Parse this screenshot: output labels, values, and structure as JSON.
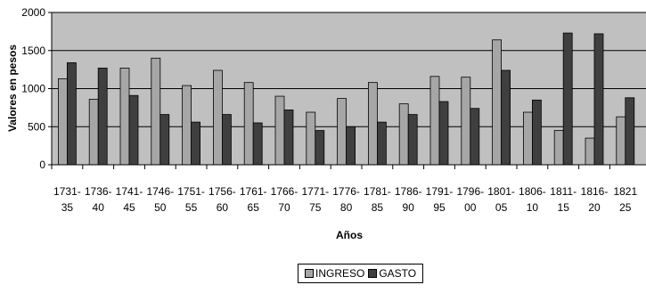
{
  "chart_data": {
    "type": "bar",
    "xlabel": "Años",
    "ylabel": "Valores en pesos",
    "ylim": [
      0,
      2000
    ],
    "yticks": [
      0,
      500,
      1000,
      1500,
      2000
    ],
    "grid": true,
    "legend_position": "bottom",
    "categories": [
      [
        "1731-",
        "35"
      ],
      [
        "1736-",
        "40"
      ],
      [
        "1741-",
        "45"
      ],
      [
        "1746-",
        "50"
      ],
      [
        "1751-",
        "55"
      ],
      [
        "1756-",
        "60"
      ],
      [
        "1761-",
        "65"
      ],
      [
        "1766-",
        "70"
      ],
      [
        "1771-",
        "75"
      ],
      [
        "1776-",
        "80"
      ],
      [
        "1781-",
        "85"
      ],
      [
        "1786-",
        "90"
      ],
      [
        "1791-",
        "95"
      ],
      [
        "1796-",
        "00"
      ],
      [
        "1801-",
        "05"
      ],
      [
        "1806-",
        "10"
      ],
      [
        "1811-",
        "15"
      ],
      [
        "1816-",
        "20"
      ],
      [
        "1821",
        "25"
      ]
    ],
    "series": [
      {
        "name": "INGRESO",
        "color": "#a6a6a6",
        "values": [
          1130,
          860,
          1270,
          1400,
          1040,
          1240,
          1080,
          900,
          690,
          870,
          1080,
          800,
          1160,
          1150,
          1640,
          690,
          450,
          350,
          630
        ]
      },
      {
        "name": "GASTO",
        "color": "#3f3f3f",
        "values": [
          1340,
          1270,
          910,
          660,
          560,
          660,
          550,
          720,
          450,
          500,
          560,
          660,
          830,
          740,
          1240,
          850,
          1730,
          1720,
          880
        ]
      }
    ],
    "colors": {
      "plot_background": "#c0c0c0",
      "gridline": "#000000"
    }
  }
}
